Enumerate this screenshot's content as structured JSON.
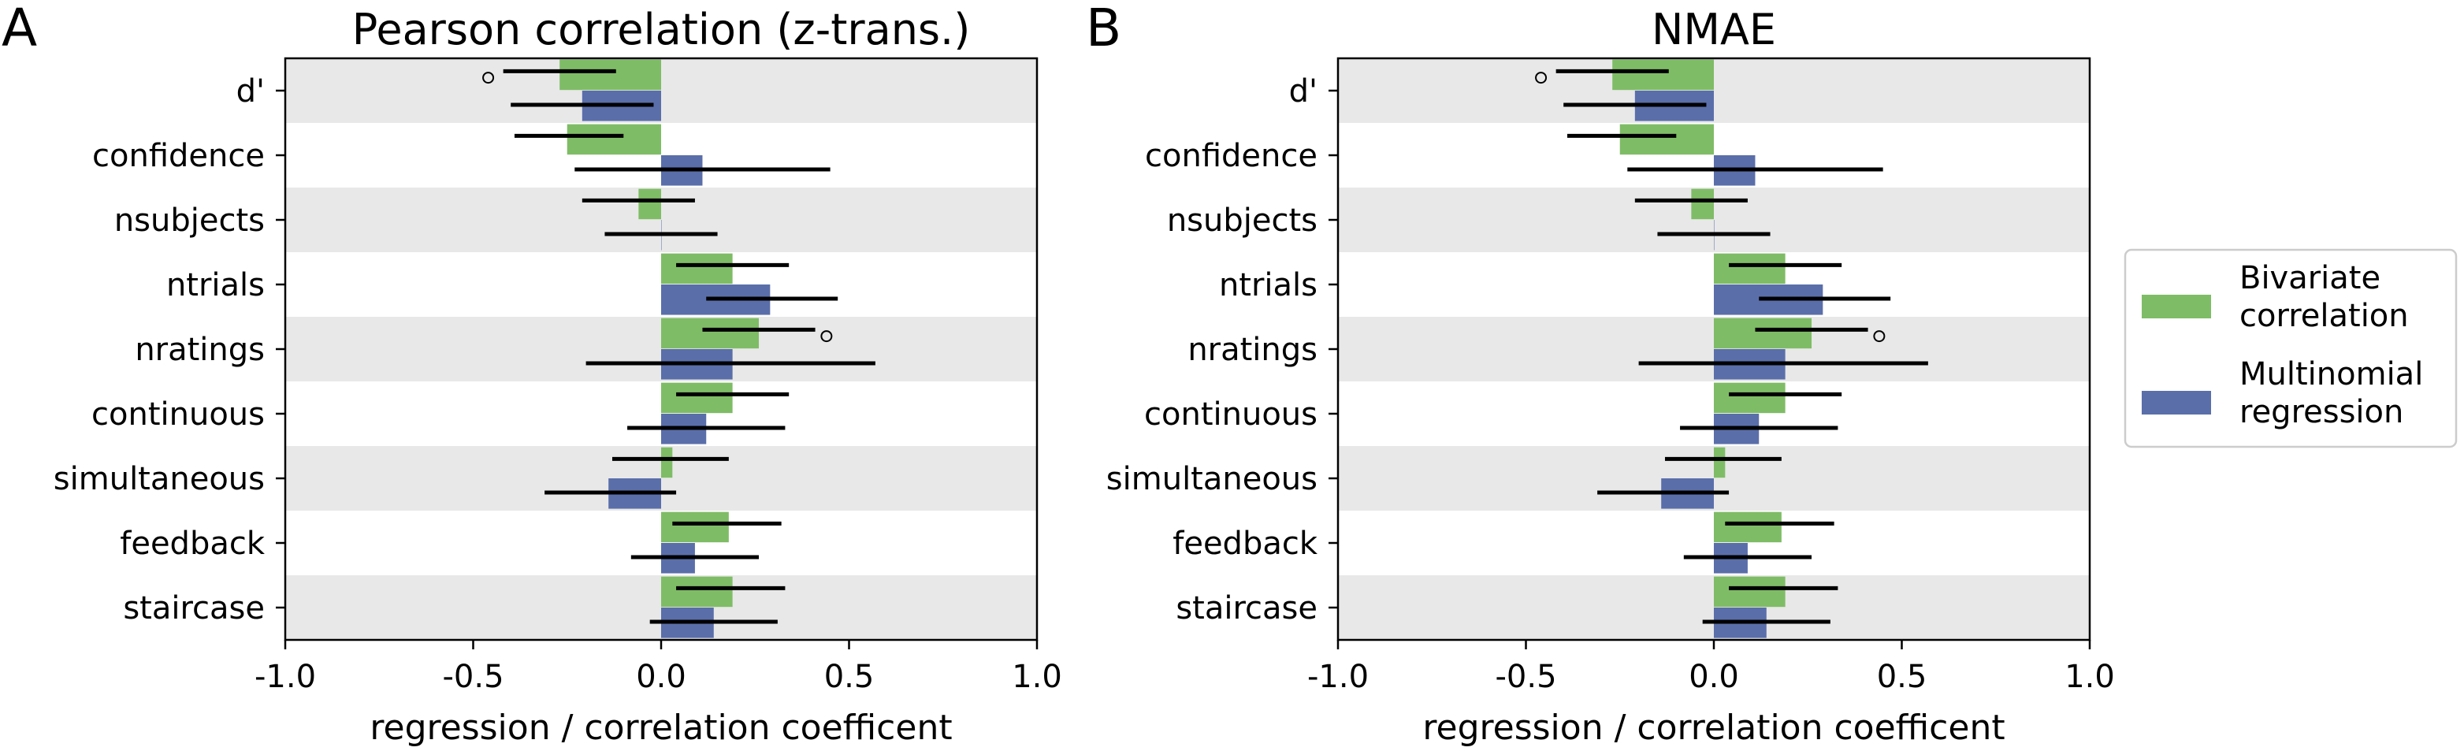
{
  "chart_data": [
    {
      "type": "bar",
      "panel_letter": "A",
      "title": "Pearson correlation (z-trans.)",
      "xlabel": "regression / correlation coefficent",
      "ylabel": "",
      "xlim": [
        -1.0,
        1.0
      ],
      "xticks": [
        "-1.0",
        "-0.5",
        "0.0",
        "0.5",
        "1.0"
      ],
      "xtick_values": [
        -1.0,
        -0.5,
        0.0,
        0.5,
        1.0
      ],
      "categories": [
        "d'",
        "confidence",
        "nsubjects",
        "ntrials",
        "nratings",
        "continuous",
        "simultaneous",
        "feedback",
        "staircase"
      ],
      "series": [
        {
          "name": "Bivariate correlation",
          "values": [
            -0.27,
            -0.25,
            -0.06,
            0.19,
            0.26,
            0.19,
            0.03,
            0.18,
            0.19
          ],
          "ci_low": [
            -0.42,
            -0.39,
            -0.21,
            0.04,
            0.11,
            0.04,
            -0.13,
            0.03,
            0.04
          ],
          "ci_high": [
            -0.12,
            -0.1,
            0.09,
            0.34,
            0.41,
            0.34,
            0.18,
            0.32,
            0.33
          ]
        },
        {
          "name": "Multinomial regression",
          "values": [
            -0.21,
            0.11,
            0.0,
            0.29,
            0.19,
            0.12,
            -0.14,
            0.09,
            0.14
          ],
          "ci_low": [
            -0.4,
            -0.23,
            -0.15,
            0.12,
            -0.2,
            -0.09,
            -0.31,
            -0.08,
            -0.03
          ],
          "ci_high": [
            -0.02,
            0.45,
            0.15,
            0.47,
            0.57,
            0.33,
            0.04,
            0.26,
            0.31
          ]
        }
      ],
      "outliers": [
        {
          "category": "d'",
          "series": "Bivariate correlation",
          "x": -0.46
        },
        {
          "category": "nratings",
          "series": "Bivariate correlation",
          "x": 0.44
        }
      ],
      "grid": "alternating horizontal row bands",
      "legend": "none"
    },
    {
      "type": "bar",
      "panel_letter": "B",
      "title": "NMAE",
      "xlabel": "regression / correlation coefficent",
      "ylabel": "",
      "xlim": [
        -1.0,
        1.0
      ],
      "xticks": [
        "-1.0",
        "-0.5",
        "0.0",
        "0.5",
        "1.0"
      ],
      "xtick_values": [
        -1.0,
        -0.5,
        0.0,
        0.5,
        1.0
      ],
      "categories": [
        "d'",
        "confidence",
        "nsubjects",
        "ntrials",
        "nratings",
        "continuous",
        "simultaneous",
        "feedback",
        "staircase"
      ],
      "series": [
        {
          "name": "Bivariate correlation",
          "values": [
            -0.27,
            -0.25,
            -0.06,
            0.19,
            0.26,
            0.19,
            0.03,
            0.18,
            0.19
          ],
          "ci_low": [
            -0.42,
            -0.39,
            -0.21,
            0.04,
            0.11,
            0.04,
            -0.13,
            0.03,
            0.04
          ],
          "ci_high": [
            -0.12,
            -0.1,
            0.09,
            0.34,
            0.41,
            0.34,
            0.18,
            0.32,
            0.33
          ]
        },
        {
          "name": "Multinomial regression",
          "values": [
            -0.21,
            0.11,
            0.0,
            0.29,
            0.19,
            0.12,
            -0.14,
            0.09,
            0.14
          ],
          "ci_low": [
            -0.4,
            -0.23,
            -0.15,
            0.12,
            -0.2,
            -0.09,
            -0.31,
            -0.08,
            -0.03
          ],
          "ci_high": [
            -0.02,
            0.45,
            0.15,
            0.47,
            0.57,
            0.33,
            0.04,
            0.26,
            0.31
          ]
        }
      ],
      "outliers": [
        {
          "category": "d'",
          "series": "Bivariate correlation",
          "x": -0.46
        },
        {
          "category": "nratings",
          "series": "Bivariate correlation",
          "x": 0.44
        }
      ],
      "grid": "alternating horizontal row bands",
      "legend": "right, outside plot"
    }
  ],
  "legend": {
    "items": [
      {
        "line1": "Bivariate",
        "line2": "correlation",
        "color": "#7fbc66"
      },
      {
        "line1": "Multinomial",
        "line2": "regression",
        "color": "#5a6eaa"
      }
    ]
  },
  "colors": {
    "bivariate": "#7fbc66",
    "multinomial": "#5a6eaa",
    "band": "#e8e8e8",
    "errorbar": "#000000"
  }
}
